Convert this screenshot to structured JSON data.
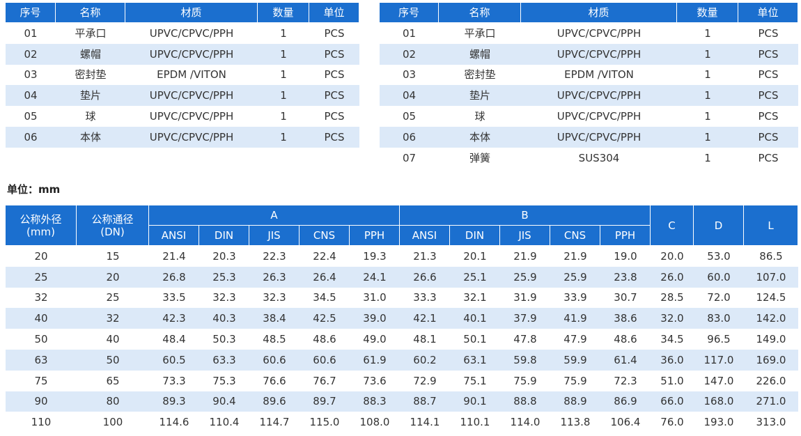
{
  "parts_tables": [
    {
      "header": [
        "序号",
        "名称",
        "材质",
        "数量",
        "单位"
      ],
      "rows": [
        [
          "01",
          "平承口",
          "UPVC/CPVC/PPH",
          "1",
          "PCS"
        ],
        [
          "02",
          "螺帽",
          "UPVC/CPVC/PPH",
          "1",
          "PCS"
        ],
        [
          "03",
          "密封垫",
          "EPDM /VITON",
          "1",
          "PCS"
        ],
        [
          "04",
          "垫片",
          "UPVC/CPVC/PPH",
          "1",
          "PCS"
        ],
        [
          "05",
          "球",
          "UPVC/CPVC/PPH",
          "1",
          "PCS"
        ],
        [
          "06",
          "本体",
          "UPVC/CPVC/PPH",
          "1",
          "PCS"
        ]
      ]
    },
    {
      "header": [
        "序号",
        "名称",
        "材质",
        "数量",
        "单位"
      ],
      "rows": [
        [
          "01",
          "平承口",
          "UPVC/CPVC/PPH",
          "1",
          "PCS"
        ],
        [
          "02",
          "螺帽",
          "UPVC/CPVC/PPH",
          "1",
          "PCS"
        ],
        [
          "03",
          "密封垫",
          "EPDM /VITON",
          "1",
          "PCS"
        ],
        [
          "04",
          "垫片",
          "UPVC/CPVC/PPH",
          "1",
          "PCS"
        ],
        [
          "05",
          "球",
          "UPVC/CPVC/PPH",
          "1",
          "PCS"
        ],
        [
          "06",
          "本体",
          "UPVC/CPVC/PPH",
          "1",
          "PCS"
        ],
        [
          "07",
          "弹簧",
          "SUS304",
          "1",
          "PCS"
        ]
      ]
    }
  ],
  "unit_label": "单位：mm",
  "dimension_table": {
    "headers": {
      "od": [
        "公称外径",
        "(mm)"
      ],
      "dn": [
        "公称通径",
        "(DN)"
      ],
      "a": "A",
      "b": "B",
      "c": "C",
      "d": "D",
      "l": "L",
      "a_sub": [
        "ANSI",
        "DIN",
        "JIS",
        "CNS",
        "PPH"
      ],
      "b_sub": [
        "ANSI",
        "DIN",
        "JIS",
        "CNS",
        "PPH"
      ]
    },
    "rows": [
      [
        "20",
        "15",
        "21.4",
        "20.3",
        "22.3",
        "22.4",
        "19.3",
        "21.3",
        "20.1",
        "21.9",
        "21.9",
        "19.0",
        "20.0",
        "53.0",
        "86.5"
      ],
      [
        "25",
        "20",
        "26.8",
        "25.3",
        "26.3",
        "26.4",
        "24.1",
        "26.6",
        "25.1",
        "25.9",
        "25.9",
        "23.8",
        "26.0",
        "60.0",
        "107.0"
      ],
      [
        "32",
        "25",
        "33.5",
        "32.3",
        "32.3",
        "34.5",
        "31.0",
        "33.3",
        "32.1",
        "31.9",
        "33.9",
        "30.7",
        "28.5",
        "72.0",
        "124.5"
      ],
      [
        "40",
        "32",
        "42.3",
        "40.3",
        "38.4",
        "42.5",
        "39.0",
        "42.1",
        "40.1",
        "37.9",
        "41.9",
        "38.6",
        "32.0",
        "83.0",
        "142.0"
      ],
      [
        "50",
        "40",
        "48.4",
        "50.3",
        "48.5",
        "48.6",
        "49.0",
        "48.1",
        "50.1",
        "47.8",
        "47.9",
        "48.6",
        "34.5",
        "96.5",
        "149.0"
      ],
      [
        "63",
        "50",
        "60.5",
        "63.3",
        "60.6",
        "60.6",
        "61.9",
        "60.2",
        "63.1",
        "59.8",
        "59.9",
        "61.4",
        "36.0",
        "117.0",
        "169.0"
      ],
      [
        "75",
        "65",
        "73.3",
        "75.3",
        "76.6",
        "76.7",
        "73.6",
        "72.9",
        "75.1",
        "75.9",
        "75.9",
        "72.3",
        "51.0",
        "147.0",
        "226.0"
      ],
      [
        "90",
        "80",
        "89.3",
        "90.4",
        "89.6",
        "89.7",
        "88.3",
        "88.7",
        "90.1",
        "88.8",
        "88.9",
        "86.9",
        "66.0",
        "168.0",
        "271.0"
      ],
      [
        "110",
        "100",
        "114.6",
        "110.4",
        "114.7",
        "115.0",
        "108.0",
        "114.1",
        "110.1",
        "114.0",
        "113.8",
        "106.4",
        "76.0",
        "193.0",
        "313.0"
      ]
    ]
  }
}
